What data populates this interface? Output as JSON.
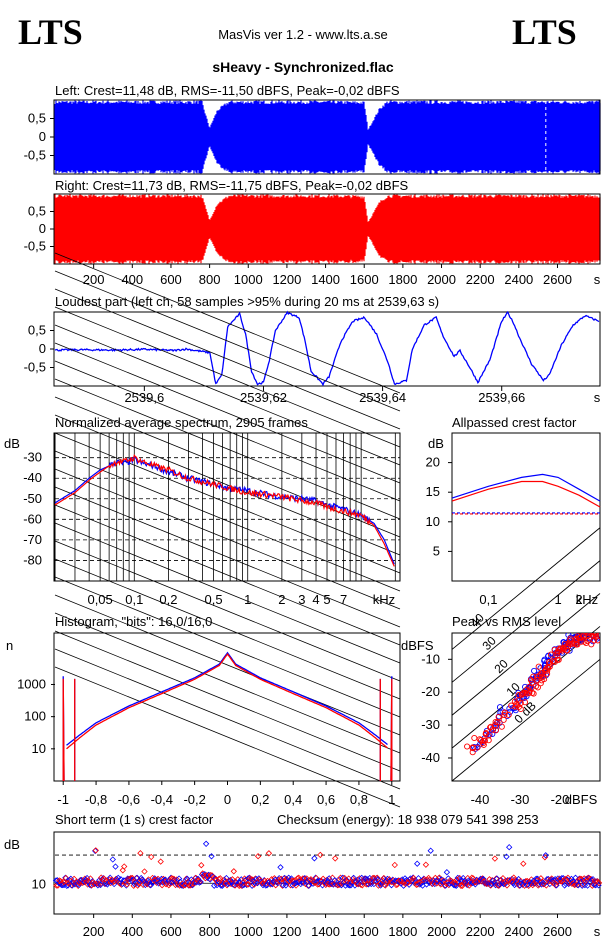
{
  "header": {
    "logo_left": "LTS",
    "logo_right": "LTS",
    "app_title": "MasVis ver 1.2 - www.lts.a.se",
    "file_name": "sHeavy - Synchronized.flac"
  },
  "colors": {
    "left": "#0000ff",
    "right": "#ff0000",
    "axis": "#000000"
  },
  "chart_data": [
    {
      "id": "left",
      "type": "area",
      "title": "Left: Crest=11,48 dB, RMS=-11,50 dBFS, Peak=-0,02 dBFS",
      "yticks": [
        "0,5",
        "0",
        "-0,5"
      ],
      "ylim": [
        -1,
        1
      ],
      "xlim": [
        0,
        2820
      ],
      "envelope": {
        "t": [
          0,
          150,
          500,
          700,
          760,
          800,
          840,
          900,
          1000,
          1400,
          1600,
          1620,
          1680,
          1720,
          2400,
          2800
        ],
        "amp": [
          0.99,
          0.99,
          0.99,
          0.99,
          0.99,
          0.25,
          0.75,
          0.99,
          0.99,
          0.99,
          0.97,
          0.2,
          0.8,
          0.99,
          0.99,
          0.99
        ]
      },
      "marker_time": 2539.63
    },
    {
      "id": "right",
      "type": "area",
      "title": "Right: Crest=11,73 dB, RMS=-11,75 dBFS, Peak=-0,02 dBFS",
      "yticks": [
        "0,5",
        "0",
        "-0,5"
      ],
      "ylim": [
        -1,
        1
      ],
      "xlim": [
        0,
        2820
      ],
      "envelope": {
        "t": [
          0,
          150,
          500,
          700,
          760,
          800,
          840,
          900,
          1000,
          1400,
          1600,
          1620,
          1680,
          1720,
          2400,
          2800
        ],
        "amp": [
          0.99,
          0.99,
          0.99,
          0.99,
          0.99,
          0.25,
          0.75,
          0.99,
          0.99,
          0.99,
          0.97,
          0.2,
          0.8,
          0.99,
          0.99,
          0.99
        ]
      },
      "xticks": [
        "200",
        "400",
        "600",
        "800",
        "1000",
        "1200",
        "1400",
        "1600",
        "1800",
        "2000",
        "2200",
        "2400",
        "2600"
      ],
      "xunit": "s"
    },
    {
      "id": "loudest",
      "type": "line",
      "title": "Loudest part (left  ch, 58 samples >95% during 20 ms at 2539,63 s)",
      "yticks": [
        "0,5",
        "0",
        "-0,5"
      ],
      "ylim": [
        -1,
        1
      ],
      "xticks": [
        "2539,6",
        "2539,62",
        "2539,64",
        "2539,66"
      ],
      "xunit": "s",
      "xlim": [
        2539.585,
        2539.6765
      ],
      "points": [
        [
          2539.585,
          -0.03
        ],
        [
          2539.59,
          -0.02
        ],
        [
          2539.595,
          -0.03
        ],
        [
          2539.6,
          -0.01
        ],
        [
          2539.605,
          -0.04
        ],
        [
          2539.607,
          0.0
        ],
        [
          2539.609,
          -0.05
        ],
        [
          2539.611,
          -0.1
        ],
        [
          2539.612,
          -0.95
        ],
        [
          2539.613,
          -0.7
        ],
        [
          2539.614,
          0.6
        ],
        [
          2539.616,
          0.95
        ],
        [
          2539.617,
          0.4
        ],
        [
          2539.618,
          -0.6
        ],
        [
          2539.619,
          -0.95
        ],
        [
          2539.62,
          -0.9
        ],
        [
          2539.621,
          -0.3
        ],
        [
          2539.622,
          0.5
        ],
        [
          2539.624,
          0.98
        ],
        [
          2539.626,
          0.85
        ],
        [
          2539.627,
          0.2
        ],
        [
          2539.628,
          -0.6
        ],
        [
          2539.63,
          -0.95
        ],
        [
          2539.631,
          -0.75
        ],
        [
          2539.633,
          0.2
        ],
        [
          2539.635,
          0.75
        ],
        [
          2539.637,
          0.85
        ],
        [
          2539.639,
          0.4
        ],
        [
          2539.641,
          -0.4
        ],
        [
          2539.642,
          -0.95
        ],
        [
          2539.644,
          -0.85
        ],
        [
          2539.645,
          0.0
        ],
        [
          2539.647,
          0.65
        ],
        [
          2539.649,
          0.85
        ],
        [
          2539.65,
          0.4
        ],
        [
          2539.652,
          -0.2
        ],
        [
          2539.653,
          -0.05
        ],
        [
          2539.655,
          -0.6
        ],
        [
          2539.656,
          -0.9
        ],
        [
          2539.658,
          -0.3
        ],
        [
          2539.66,
          0.75
        ],
        [
          2539.661,
          0.98
        ],
        [
          2539.662,
          0.7
        ],
        [
          2539.663,
          0.3
        ],
        [
          2539.665,
          -0.4
        ],
        [
          2539.667,
          -0.85
        ],
        [
          2539.668,
          -0.7
        ],
        [
          2539.67,
          0.1
        ],
        [
          2539.672,
          0.65
        ],
        [
          2539.674,
          0.9
        ],
        [
          2539.6755,
          0.8
        ],
        [
          2539.6765,
          0.75
        ]
      ]
    },
    {
      "id": "spectrum",
      "type": "line",
      "title": "Normalized average spectrum, 2905 frames",
      "ylabel": "dB",
      "yticks": [
        "-30",
        "-40",
        "-50",
        "-60",
        "-70",
        "-80"
      ],
      "ylim": [
        -90,
        -18
      ],
      "xlim": [
        0.02,
        22
      ],
      "xticks": [
        {
          "v": 0.05,
          "l": "0,05"
        },
        {
          "v": 0.1,
          "l": "0,1"
        },
        {
          "v": 0.2,
          "l": "0,2"
        },
        {
          "v": 0.5,
          "l": "0,5"
        },
        {
          "v": 1,
          "l": "1"
        },
        {
          "v": 2,
          "l": "2"
        },
        {
          "v": 3,
          "l": "3"
        },
        {
          "v": 4,
          "l": "4"
        },
        {
          "v": 5,
          "l": "5"
        },
        {
          "v": 7,
          "l": "7"
        }
      ],
      "xunit": "kHz",
      "series": [
        {
          "color": "#0000ff",
          "points": [
            [
              0.02,
              -52
            ],
            [
              0.03,
              -46
            ],
            [
              0.04,
              -40
            ],
            [
              0.05,
              -36
            ],
            [
              0.06,
              -34
            ],
            [
              0.07,
              -32
            ],
            [
              0.08,
              -33
            ],
            [
              0.1,
              -31
            ],
            [
              0.12,
              -33
            ],
            [
              0.15,
              -34
            ],
            [
              0.2,
              -37
            ],
            [
              0.3,
              -40
            ],
            [
              0.5,
              -43
            ],
            [
              0.7,
              -45
            ],
            [
              1,
              -46
            ],
            [
              1.5,
              -48
            ],
            [
              2,
              -49
            ],
            [
              3,
              -50
            ],
            [
              4,
              -51
            ],
            [
              5,
              -53
            ],
            [
              7,
              -55
            ],
            [
              10,
              -58
            ],
            [
              13,
              -62
            ],
            [
              16,
              -70
            ],
            [
              20,
              -83
            ]
          ]
        },
        {
          "color": "#ff0000",
          "points": [
            [
              0.02,
              -53
            ],
            [
              0.03,
              -47
            ],
            [
              0.04,
              -41
            ],
            [
              0.05,
              -37
            ],
            [
              0.06,
              -34
            ],
            [
              0.07,
              -32
            ],
            [
              0.08,
              -32
            ],
            [
              0.1,
              -30
            ],
            [
              0.12,
              -32
            ],
            [
              0.15,
              -34
            ],
            [
              0.2,
              -36
            ],
            [
              0.3,
              -40
            ],
            [
              0.5,
              -43
            ],
            [
              0.7,
              -45
            ],
            [
              1,
              -47
            ],
            [
              1.5,
              -48
            ],
            [
              2,
              -49
            ],
            [
              3,
              -51
            ],
            [
              4,
              -52
            ],
            [
              5,
              -54
            ],
            [
              7,
              -56
            ],
            [
              10,
              -58
            ],
            [
              13,
              -63
            ],
            [
              16,
              -72
            ],
            [
              20,
              -84
            ]
          ]
        }
      ]
    },
    {
      "id": "allpass",
      "type": "line",
      "title": "Allpassed crest factor",
      "ylabel": "dB",
      "yticks": [
        "20",
        "15",
        "10",
        "5"
      ],
      "ylim": [
        0,
        25
      ],
      "xlim": [
        0.03,
        4
      ],
      "xticks": [
        {
          "v": 0.1,
          "l": "0,1"
        },
        {
          "v": 1,
          "l": "1"
        },
        {
          "v": 2,
          "l": "2"
        }
      ],
      "xunit": "kHz",
      "reference_db": 11.5,
      "series": [
        {
          "color": "#0000ff",
          "points": [
            [
              0.03,
              14
            ],
            [
              0.1,
              16
            ],
            [
              0.3,
              17.5
            ],
            [
              0.6,
              18
            ],
            [
              1,
              17.5
            ],
            [
              2,
              15.5
            ],
            [
              4,
              13.5
            ]
          ]
        },
        {
          "color": "#ff0000",
          "points": [
            [
              0.03,
              13.5
            ],
            [
              0.1,
              15.5
            ],
            [
              0.3,
              16.8
            ],
            [
              0.6,
              16.8
            ],
            [
              1,
              16
            ],
            [
              2,
              14.5
            ],
            [
              4,
              12.5
            ]
          ]
        }
      ]
    },
    {
      "id": "histogram",
      "type": "line",
      "title": "Histogram, \"bits\": 16,0/16,0",
      "ylabel": "n",
      "yticks": [
        "1000",
        "100",
        "10"
      ],
      "ylim_log10": [
        0,
        4.6
      ],
      "xticks": [
        "-1",
        "-0,8",
        "-0,6",
        "-0,4",
        "-0,2",
        "0",
        "0,2",
        "0,4",
        "0,6",
        "0,8",
        "1"
      ],
      "xlim": [
        -1.05,
        1.05
      ],
      "series": [
        {
          "color": "#0000ff",
          "points": [
            [
              -1,
              1800
            ],
            [
              -0.98,
              12
            ],
            [
              -0.9,
              25
            ],
            [
              -0.8,
              60
            ],
            [
              -0.6,
              200
            ],
            [
              -0.4,
              550
            ],
            [
              -0.2,
              1500
            ],
            [
              -0.05,
              4000
            ],
            [
              0,
              9000
            ],
            [
              0.05,
              4000
            ],
            [
              0.2,
              1500
            ],
            [
              0.4,
              550
            ],
            [
              0.6,
              200
            ],
            [
              0.8,
              60
            ],
            [
              0.9,
              25
            ],
            [
              0.98,
              12
            ],
            [
              1,
              1800
            ]
          ]
        },
        {
          "color": "#ff0000",
          "points": [
            [
              -1,
              1500
            ],
            [
              -0.98,
              10
            ],
            [
              -0.9,
              22
            ],
            [
              -0.8,
              55
            ],
            [
              -0.6,
              190
            ],
            [
              -0.4,
              520
            ],
            [
              -0.2,
              1450
            ],
            [
              -0.05,
              3900
            ],
            [
              0,
              8800
            ],
            [
              0.05,
              3900
            ],
            [
              0.2,
              1450
            ],
            [
              0.4,
              520
            ],
            [
              0.6,
              190
            ],
            [
              0.8,
              55
            ],
            [
              0.9,
              22
            ],
            [
              0.98,
              10
            ],
            [
              1,
              1500
            ]
          ]
        }
      ]
    },
    {
      "id": "peakrms",
      "type": "scatter",
      "title": "Peak vs RMS level",
      "ylabel": "dBFS",
      "yticks": [
        "-10",
        "-20",
        "-30",
        "-40"
      ],
      "ylim": [
        -47,
        -2
      ],
      "xticks": [
        "-40",
        "-30",
        "-20"
      ],
      "xunit": "dBFS",
      "xlim": [
        -47,
        -10
      ],
      "diagonal_labels": [
        "40",
        "30",
        "20",
        "10",
        "0 dB"
      ],
      "series": [
        {
          "color": "#0000ff",
          "points": [
            [
              -40,
              -36
            ],
            [
              -38,
              -33
            ],
            [
              -36,
              -30
            ],
            [
              -34,
              -26
            ],
            [
              -32,
              -25
            ],
            [
              -30,
              -22
            ],
            [
              -29,
              -20
            ],
            [
              -28,
              -19
            ],
            [
              -27,
              -17
            ],
            [
              -26,
              -15
            ],
            [
              -25,
              -14
            ],
            [
              -24,
              -12
            ],
            [
              -23,
              -11
            ],
            [
              -22,
              -10
            ],
            [
              -21,
              -8
            ],
            [
              -20,
              -7
            ],
            [
              -19,
              -6
            ],
            [
              -18,
              -5
            ],
            [
              -17,
              -4
            ],
            [
              -16,
              -4
            ],
            [
              -15,
              -3
            ],
            [
              -14,
              -3
            ],
            [
              -13,
              -3
            ],
            [
              -12,
              -3
            ]
          ]
        },
        {
          "color": "#ff0000",
          "points": [
            [
              -42,
              -38
            ],
            [
              -40,
              -35
            ],
            [
              -39,
              -34
            ],
            [
              -37,
              -31
            ],
            [
              -35,
              -29
            ],
            [
              -33,
              -27
            ],
            [
              -31,
              -24
            ],
            [
              -30,
              -23
            ],
            [
              -29,
              -21
            ],
            [
              -28,
              -20
            ],
            [
              -27,
              -18
            ],
            [
              -26,
              -16
            ],
            [
              -25,
              -15
            ],
            [
              -24,
              -13
            ],
            [
              -23,
              -12
            ],
            [
              -22,
              -11
            ],
            [
              -21,
              -9
            ],
            [
              -20,
              -8
            ],
            [
              -19,
              -7
            ],
            [
              -18,
              -6
            ],
            [
              -17,
              -5
            ],
            [
              -16,
              -5
            ],
            [
              -15,
              -4
            ],
            [
              -14,
              -4
            ],
            [
              -13,
              -4
            ],
            [
              -12,
              -3
            ],
            [
              -11,
              -3
            ]
          ]
        }
      ]
    },
    {
      "id": "shortcrest",
      "type": "scatter",
      "title": "Short term (1 s) crest factor",
      "checksum_label": "Checksum (energy):  18 938 079 541 398 253",
      "ylabel": "dB",
      "yticks": [
        "10"
      ],
      "ylim": [
        4,
        20
      ],
      "reference_db": 15.5,
      "xticks": [
        "200",
        "400",
        "600",
        "800",
        "1000",
        "1200",
        "1400",
        "1600",
        "1800",
        "2000",
        "2200",
        "2400",
        "2600"
      ],
      "xunit": "s",
      "xlim": [
        0,
        2820
      ]
    }
  ]
}
